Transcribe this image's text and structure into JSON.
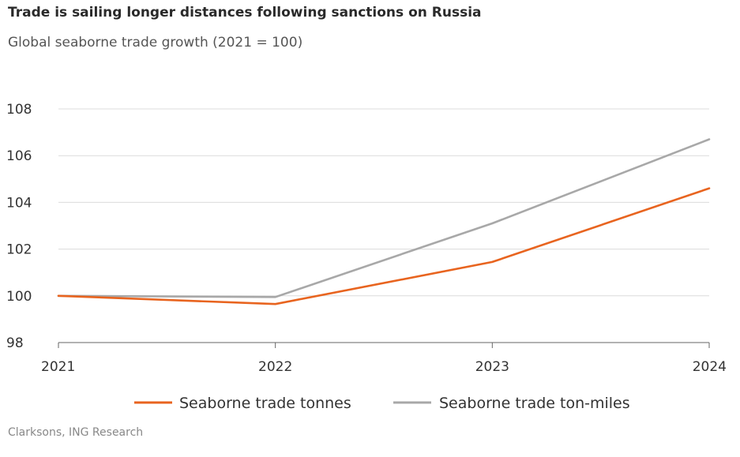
{
  "chart_data": {
    "type": "line",
    "title": "Trade is sailing longer distances following sanctions on Russia",
    "subtitle": "Global seaborne trade growth (2021 = 100)",
    "x": [
      "2021",
      "2022",
      "2023",
      "2024"
    ],
    "series": [
      {
        "name": "Seaborne trade tonnes",
        "values": [
          100,
          99.65,
          101.45,
          104.6
        ],
        "color": "#e8641f"
      },
      {
        "name": "Seaborne trade ton-miles",
        "values": [
          100,
          99.95,
          103.1,
          106.7
        ],
        "color": "#a8a8a8"
      }
    ],
    "y_ticks": [
      "108",
      "106",
      "104",
      "102",
      "100",
      "98"
    ],
    "ylim": [
      98,
      108
    ],
    "grid": true,
    "legend_position": "bottom",
    "source": "Clarksons, ING Research"
  }
}
